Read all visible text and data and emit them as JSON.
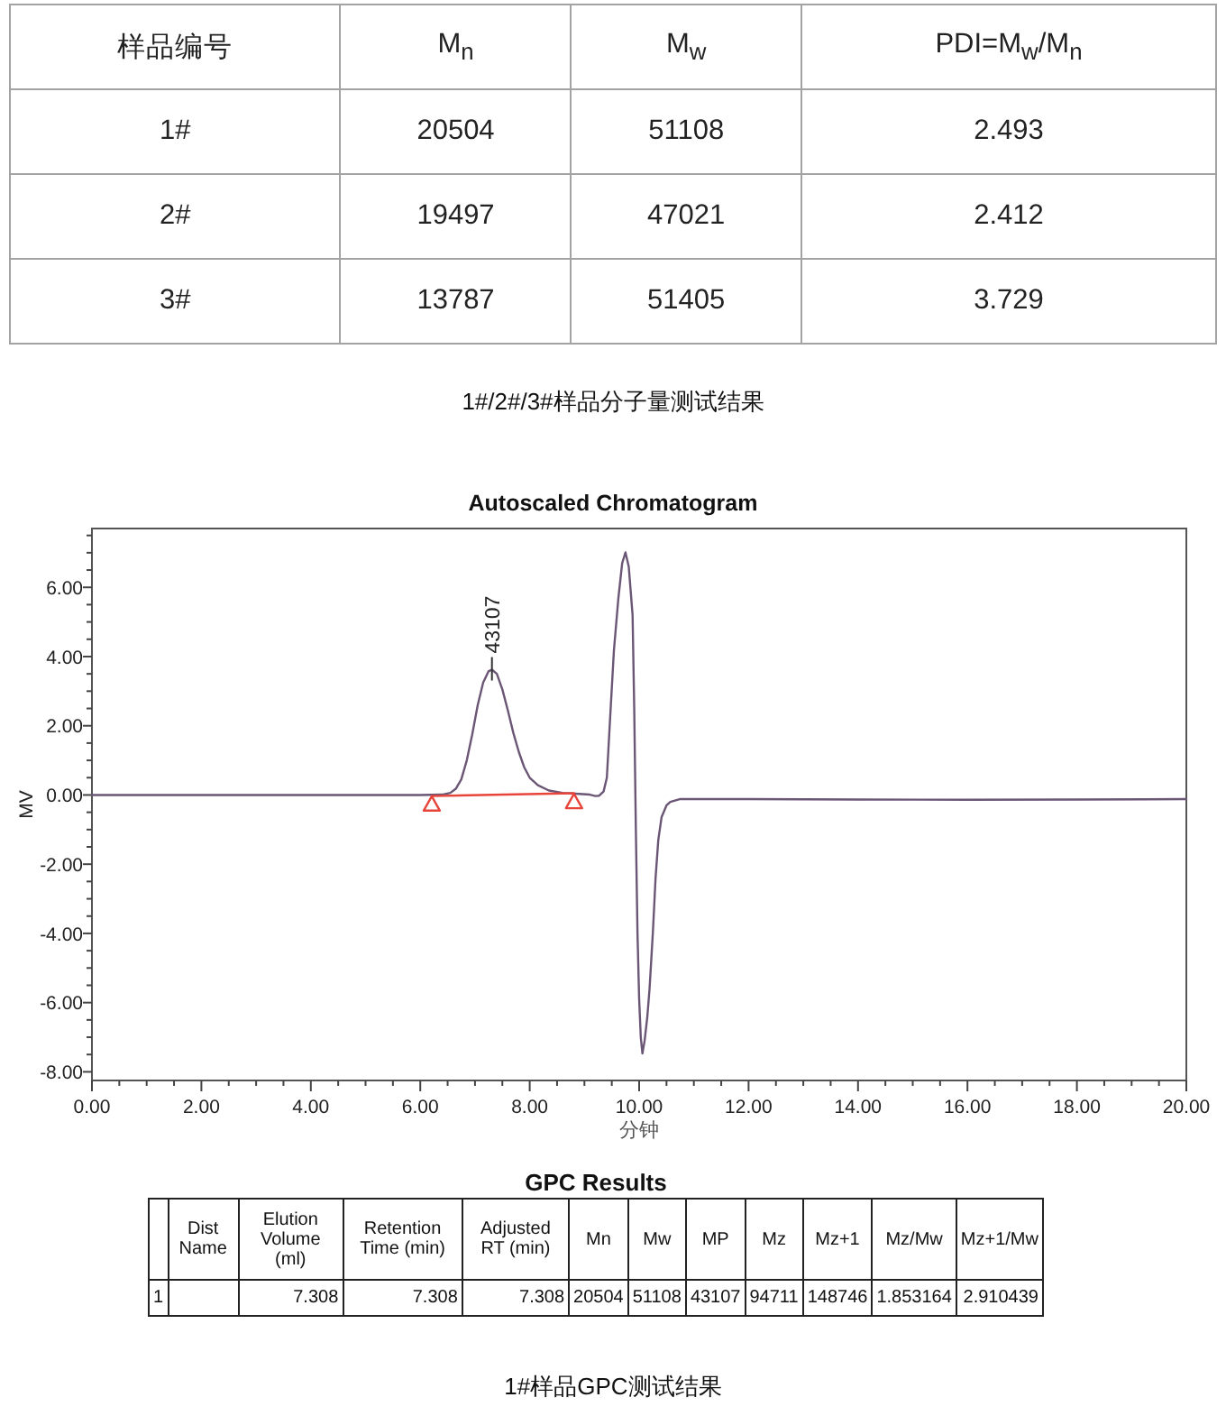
{
  "chart_data": [
    {
      "type": "other",
      "ylabel": "样品编号",
      "categories": [
        "M$_{n}$",
        "M$_{w}$",
        "PDI=M$_{w}$/M$_{n}$"
      ],
      "y_categories": [
        "1#",
        "2#",
        "3#"
      ],
      "cell_labels": [
        [
          "20504",
          "51108",
          "2.493"
        ],
        [
          "19497",
          "47021",
          "2.412"
        ],
        [
          "13787",
          "51405",
          "3.729"
        ]
      ],
      "annotations": [
        "1#/2#/3#样品分子量测试结果"
      ]
    },
    {
      "type": "line",
      "title": "Autoscaled Chromatogram",
      "xlabel": "分钟",
      "ylabel": "MV",
      "xlim": [
        0,
        20
      ],
      "ylim": [
        -8.25,
        7.7
      ],
      "xticks": [
        {
          "value": 0,
          "label": "0.00"
        },
        {
          "value": 0.5,
          "label": null
        },
        {
          "value": 1,
          "label": null
        },
        {
          "value": 1.5,
          "label": null
        },
        {
          "value": 2,
          "label": "2.00"
        },
        {
          "value": 2.5,
          "label": null
        },
        {
          "value": 3,
          "label": null
        },
        {
          "value": 3.5,
          "label": null
        },
        {
          "value": 4,
          "label": "4.00"
        },
        {
          "value": 4.5,
          "label": null
        },
        {
          "value": 5,
          "label": null
        },
        {
          "value": 5.5,
          "label": null
        },
        {
          "value": 6,
          "label": "6.00"
        },
        {
          "value": 6.5,
          "label": null
        },
        {
          "value": 7,
          "label": null
        },
        {
          "value": 7.5,
          "label": null
        },
        {
          "value": 8,
          "label": "8.00"
        },
        {
          "value": 8.5,
          "label": null
        },
        {
          "value": 9,
          "label": null
        },
        {
          "value": 9.5,
          "label": null
        },
        {
          "value": 10,
          "label": "10.00"
        },
        {
          "value": 10.5,
          "label": null
        },
        {
          "value": 11,
          "label": null
        },
        {
          "value": 11.5,
          "label": null
        },
        {
          "value": 12,
          "label": "12.00"
        },
        {
          "value": 12.5,
          "label": null
        },
        {
          "value": 13,
          "label": null
        },
        {
          "value": 13.5,
          "label": null
        },
        {
          "value": 14,
          "label": "14.00"
        },
        {
          "value": 14.5,
          "label": null
        },
        {
          "value": 15,
          "label": null
        },
        {
          "value": 15.5,
          "label": null
        },
        {
          "value": 16,
          "label": "16.00"
        },
        {
          "value": 16.5,
          "label": null
        },
        {
          "value": 17,
          "label": null
        },
        {
          "value": 17.5,
          "label": null
        },
        {
          "value": 18,
          "label": "18.00"
        },
        {
          "value": 18.5,
          "label": null
        },
        {
          "value": 19,
          "label": null
        },
        {
          "value": 19.5,
          "label": null
        },
        {
          "value": 20,
          "label": "20.00"
        }
      ],
      "yticks": [
        {
          "value": -8,
          "label": "-8.00"
        },
        {
          "value": -7.5,
          "label": null
        },
        {
          "value": -7,
          "label": null
        },
        {
          "value": -6.5,
          "label": null
        },
        {
          "value": -6,
          "label": "-6.00"
        },
        {
          "value": -5.5,
          "label": null
        },
        {
          "value": -5,
          "label": null
        },
        {
          "value": -4.5,
          "label": null
        },
        {
          "value": -4,
          "label": "-4.00"
        },
        {
          "value": -3.5,
          "label": null
        },
        {
          "value": -3,
          "label": null
        },
        {
          "value": -2.5,
          "label": null
        },
        {
          "value": -2,
          "label": "-2.00"
        },
        {
          "value": -1.5,
          "label": null
        },
        {
          "value": -1,
          "label": null
        },
        {
          "value": -0.5,
          "label": null
        },
        {
          "value": 0,
          "label": "0.00"
        },
        {
          "value": 0.5,
          "label": null
        },
        {
          "value": 1,
          "label": null
        },
        {
          "value": 1.5,
          "label": null
        },
        {
          "value": 2,
          "label": "2.00"
        },
        {
          "value": 2.5,
          "label": null
        },
        {
          "value": 3,
          "label": null
        },
        {
          "value": 3.5,
          "label": null
        },
        {
          "value": 4,
          "label": "4.00"
        },
        {
          "value": 4.5,
          "label": null
        },
        {
          "value": 5,
          "label": null
        },
        {
          "value": 5.5,
          "label": null
        },
        {
          "value": 6,
          "label": "6.00"
        },
        {
          "value": 6.5,
          "label": null
        },
        {
          "value": 7,
          "label": null
        },
        {
          "value": 7.5,
          "label": null
        }
      ],
      "series": [
        {
          "color": "#6b5676",
          "x": [
            0,
            2,
            4,
            6,
            6.4,
            6.55,
            6.65,
            6.75,
            6.85,
            6.95,
            7.05,
            7.15,
            7.25,
            7.31,
            7.4,
            7.5,
            7.6,
            7.7,
            7.8,
            7.9,
            8.0,
            8.15,
            8.35,
            8.6,
            8.9,
            9.1,
            9.2,
            9.27,
            9.35,
            9.41,
            9.47,
            9.54,
            9.62,
            9.69,
            9.75,
            9.81,
            9.88,
            9.91,
            9.94,
            9.97,
            10.0,
            10.03,
            10.06,
            10.1,
            10.15,
            10.19,
            10.25,
            10.3,
            10.35,
            10.41,
            10.5,
            10.57,
            10.74,
            12,
            14,
            16,
            18,
            20
          ],
          "values": [
            0,
            0,
            0,
            0,
            0.01,
            0.06,
            0.18,
            0.45,
            1.0,
            1.75,
            2.6,
            3.25,
            3.58,
            3.62,
            3.5,
            3.05,
            2.45,
            1.8,
            1.25,
            0.8,
            0.5,
            0.28,
            0.13,
            0.06,
            0.03,
            0.01,
            -0.03,
            -0.02,
            0.1,
            0.5,
            2.23,
            4.2,
            5.68,
            6.7,
            7.01,
            6.6,
            5.2,
            2.5,
            -1.0,
            -4.0,
            -5.9,
            -7.0,
            -7.47,
            -7.1,
            -6.4,
            -5.6,
            -4.0,
            -2.4,
            -1.3,
            -0.64,
            -0.3,
            -0.2,
            -0.12,
            -0.12,
            -0.13,
            -0.14,
            -0.13,
            -0.12
          ]
        },
        {
          "color": "#e8443a",
          "x": [
            6.21,
            8.81
          ],
          "values": [
            -0.03,
            0.05
          ]
        },
        {
          "type": "scatter",
          "marker": "triangle",
          "color": "#e8443a",
          "x": [
            6.21,
            8.81
          ],
          "values": [
            -0.27,
            -0.2
          ]
        }
      ],
      "annotations": [
        {
          "text": "43107",
          "x": 7.31,
          "y": 3.62
        }
      ]
    },
    {
      "type": "other",
      "title": "GPC Results",
      "categories": [
        "Dist Name",
        "Elution Volume (ml)",
        "Retention Time (min)",
        "Adjusted RT (min)",
        "Mn",
        "Mw",
        "MP",
        "Mz",
        "Mz+1",
        "Mz/Mw",
        "Mz+1/Mw"
      ],
      "y_categories": [
        "1"
      ],
      "cell_labels": [
        [
          null,
          "7.308",
          "7.308",
          "7.308",
          "20504",
          "51108",
          "43107",
          "94711",
          "148746",
          "1.853164",
          "2.910439"
        ]
      ],
      "annotations": [
        "1#样品GPC测试结果"
      ]
    }
  ]
}
